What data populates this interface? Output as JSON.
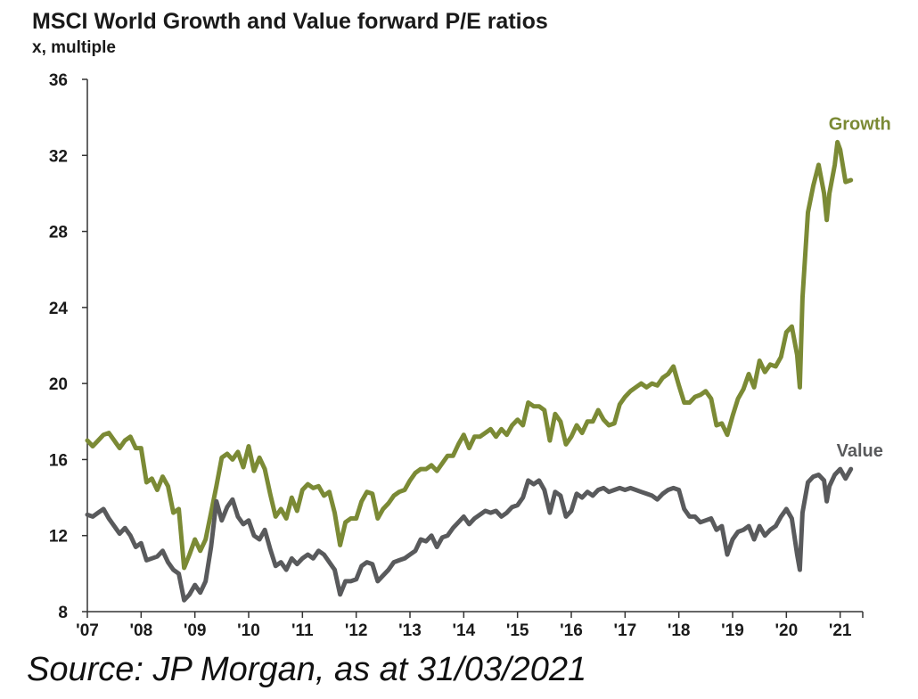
{
  "chart_data": {
    "type": "line",
    "title": "MSCI World Growth and Value forward P/E ratios",
    "subtitle": "x, multiple",
    "xlabel": "",
    "ylabel": "x, multiple",
    "ylim": [
      8,
      36
    ],
    "xlim": [
      2007.0,
      2021.42
    ],
    "yticks": [
      "36",
      "32",
      "28",
      "24",
      "20",
      "16",
      "12",
      "8"
    ],
    "yticks_values": [
      36,
      32,
      28,
      24,
      20,
      16,
      12,
      8
    ],
    "xticks": [
      "'07",
      "'08",
      "'09",
      "'10",
      "'11",
      "'12",
      "'13",
      "'14",
      "'15",
      "'16",
      "'17",
      "'18",
      "'19",
      "'20",
      "'21"
    ],
    "xticks_values": [
      2007,
      2008,
      2009,
      2010,
      2011,
      2012,
      2013,
      2014,
      2015,
      2016,
      2017,
      2018,
      2019,
      2020,
      2021
    ],
    "series": [
      {
        "name": "Growth",
        "label": "Growth",
        "color": "#7b8a35",
        "points": [
          [
            2007.0,
            17.0
          ],
          [
            2007.1,
            16.7
          ],
          [
            2007.2,
            17.0
          ],
          [
            2007.3,
            17.3
          ],
          [
            2007.4,
            17.4
          ],
          [
            2007.5,
            17.0
          ],
          [
            2007.6,
            16.6
          ],
          [
            2007.7,
            17.0
          ],
          [
            2007.8,
            17.2
          ],
          [
            2007.9,
            16.6
          ],
          [
            2008.0,
            16.6
          ],
          [
            2008.1,
            14.8
          ],
          [
            2008.2,
            15.0
          ],
          [
            2008.3,
            14.4
          ],
          [
            2008.4,
            15.1
          ],
          [
            2008.5,
            14.6
          ],
          [
            2008.6,
            13.2
          ],
          [
            2008.7,
            13.4
          ],
          [
            2008.8,
            10.3
          ],
          [
            2008.9,
            11.0
          ],
          [
            2009.0,
            11.8
          ],
          [
            2009.1,
            11.2
          ],
          [
            2009.2,
            11.8
          ],
          [
            2009.3,
            13.2
          ],
          [
            2009.4,
            14.6
          ],
          [
            2009.5,
            16.1
          ],
          [
            2009.6,
            16.3
          ],
          [
            2009.7,
            16.0
          ],
          [
            2009.8,
            16.4
          ],
          [
            2009.9,
            15.6
          ],
          [
            2010.0,
            16.7
          ],
          [
            2010.1,
            15.4
          ],
          [
            2010.2,
            16.1
          ],
          [
            2010.3,
            15.5
          ],
          [
            2010.4,
            14.2
          ],
          [
            2010.5,
            13.0
          ],
          [
            2010.6,
            13.4
          ],
          [
            2010.7,
            12.9
          ],
          [
            2010.8,
            14.0
          ],
          [
            2010.9,
            13.3
          ],
          [
            2011.0,
            14.4
          ],
          [
            2011.1,
            14.7
          ],
          [
            2011.2,
            14.5
          ],
          [
            2011.3,
            14.6
          ],
          [
            2011.4,
            14.1
          ],
          [
            2011.5,
            14.3
          ],
          [
            2011.6,
            13.2
          ],
          [
            2011.7,
            11.5
          ],
          [
            2011.8,
            12.7
          ],
          [
            2011.9,
            12.9
          ],
          [
            2012.0,
            12.9
          ],
          [
            2012.1,
            13.8
          ],
          [
            2012.2,
            14.3
          ],
          [
            2012.3,
            14.2
          ],
          [
            2012.4,
            12.9
          ],
          [
            2012.5,
            13.4
          ],
          [
            2012.6,
            13.7
          ],
          [
            2012.7,
            14.1
          ],
          [
            2012.8,
            14.3
          ],
          [
            2012.9,
            14.4
          ],
          [
            2013.0,
            14.9
          ],
          [
            2013.1,
            15.3
          ],
          [
            2013.2,
            15.5
          ],
          [
            2013.3,
            15.5
          ],
          [
            2013.4,
            15.7
          ],
          [
            2013.5,
            15.4
          ],
          [
            2013.6,
            15.8
          ],
          [
            2013.7,
            16.2
          ],
          [
            2013.8,
            16.2
          ],
          [
            2013.9,
            16.8
          ],
          [
            2014.0,
            17.3
          ],
          [
            2014.1,
            16.6
          ],
          [
            2014.2,
            17.2
          ],
          [
            2014.3,
            17.2
          ],
          [
            2014.4,
            17.4
          ],
          [
            2014.5,
            17.6
          ],
          [
            2014.6,
            17.2
          ],
          [
            2014.7,
            17.6
          ],
          [
            2014.8,
            17.3
          ],
          [
            2014.9,
            17.8
          ],
          [
            2015.0,
            18.1
          ],
          [
            2015.1,
            17.8
          ],
          [
            2015.2,
            19.0
          ],
          [
            2015.3,
            18.8
          ],
          [
            2015.4,
            18.8
          ],
          [
            2015.5,
            18.6
          ],
          [
            2015.6,
            17.0
          ],
          [
            2015.7,
            18.4
          ],
          [
            2015.8,
            18.0
          ],
          [
            2015.9,
            16.8
          ],
          [
            2016.0,
            17.2
          ],
          [
            2016.1,
            17.8
          ],
          [
            2016.2,
            17.4
          ],
          [
            2016.3,
            18.0
          ],
          [
            2016.4,
            18.0
          ],
          [
            2016.5,
            18.6
          ],
          [
            2016.6,
            18.1
          ],
          [
            2016.7,
            17.8
          ],
          [
            2016.8,
            17.9
          ],
          [
            2016.9,
            18.9
          ],
          [
            2017.0,
            19.3
          ],
          [
            2017.1,
            19.6
          ],
          [
            2017.2,
            19.8
          ],
          [
            2017.3,
            20.0
          ],
          [
            2017.4,
            19.8
          ],
          [
            2017.5,
            20.0
          ],
          [
            2017.6,
            19.9
          ],
          [
            2017.7,
            20.3
          ],
          [
            2017.8,
            20.5
          ],
          [
            2017.9,
            20.9
          ],
          [
            2018.0,
            19.9
          ],
          [
            2018.1,
            19.0
          ],
          [
            2018.2,
            19.0
          ],
          [
            2018.3,
            19.3
          ],
          [
            2018.4,
            19.4
          ],
          [
            2018.5,
            19.6
          ],
          [
            2018.6,
            19.2
          ],
          [
            2018.7,
            17.8
          ],
          [
            2018.8,
            17.9
          ],
          [
            2018.9,
            17.3
          ],
          [
            2019.0,
            18.3
          ],
          [
            2019.1,
            19.2
          ],
          [
            2019.2,
            19.7
          ],
          [
            2019.3,
            20.5
          ],
          [
            2019.4,
            19.8
          ],
          [
            2019.5,
            21.2
          ],
          [
            2019.6,
            20.6
          ],
          [
            2019.7,
            21.0
          ],
          [
            2019.8,
            20.9
          ],
          [
            2019.9,
            21.4
          ],
          [
            2020.0,
            22.7
          ],
          [
            2020.1,
            23.0
          ],
          [
            2020.2,
            21.5
          ],
          [
            2020.25,
            19.8
          ],
          [
            2020.3,
            24.5
          ],
          [
            2020.4,
            29.0
          ],
          [
            2020.5,
            30.4
          ],
          [
            2020.6,
            31.5
          ],
          [
            2020.7,
            30.0
          ],
          [
            2020.75,
            28.6
          ],
          [
            2020.8,
            30.0
          ],
          [
            2020.9,
            31.5
          ],
          [
            2020.95,
            32.7
          ],
          [
            2021.0,
            32.3
          ],
          [
            2021.1,
            30.6
          ],
          [
            2021.2,
            30.7
          ]
        ]
      },
      {
        "name": "Value",
        "label": "Value",
        "color": "#595a5c",
        "points": [
          [
            2007.0,
            13.1
          ],
          [
            2007.1,
            13.0
          ],
          [
            2007.2,
            13.2
          ],
          [
            2007.3,
            13.4
          ],
          [
            2007.4,
            12.9
          ],
          [
            2007.5,
            12.5
          ],
          [
            2007.6,
            12.1
          ],
          [
            2007.7,
            12.4
          ],
          [
            2007.8,
            12.0
          ],
          [
            2007.9,
            11.4
          ],
          [
            2008.0,
            11.6
          ],
          [
            2008.1,
            10.7
          ],
          [
            2008.2,
            10.8
          ],
          [
            2008.3,
            10.9
          ],
          [
            2008.4,
            11.2
          ],
          [
            2008.5,
            10.6
          ],
          [
            2008.6,
            10.2
          ],
          [
            2008.7,
            10.0
          ],
          [
            2008.8,
            8.6
          ],
          [
            2008.9,
            8.9
          ],
          [
            2009.0,
            9.4
          ],
          [
            2009.1,
            9.0
          ],
          [
            2009.2,
            9.6
          ],
          [
            2009.3,
            11.4
          ],
          [
            2009.4,
            13.8
          ],
          [
            2009.5,
            12.8
          ],
          [
            2009.6,
            13.5
          ],
          [
            2009.7,
            13.9
          ],
          [
            2009.8,
            13.0
          ],
          [
            2009.9,
            12.6
          ],
          [
            2010.0,
            12.8
          ],
          [
            2010.1,
            12.0
          ],
          [
            2010.2,
            11.8
          ],
          [
            2010.3,
            12.3
          ],
          [
            2010.4,
            11.3
          ],
          [
            2010.5,
            10.4
          ],
          [
            2010.6,
            10.6
          ],
          [
            2010.7,
            10.2
          ],
          [
            2010.8,
            10.8
          ],
          [
            2010.9,
            10.5
          ],
          [
            2011.0,
            10.8
          ],
          [
            2011.1,
            11.0
          ],
          [
            2011.2,
            10.8
          ],
          [
            2011.3,
            11.2
          ],
          [
            2011.4,
            11.0
          ],
          [
            2011.5,
            10.6
          ],
          [
            2011.6,
            10.2
          ],
          [
            2011.7,
            8.9
          ],
          [
            2011.8,
            9.6
          ],
          [
            2011.9,
            9.6
          ],
          [
            2012.0,
            9.7
          ],
          [
            2012.1,
            10.4
          ],
          [
            2012.2,
            10.6
          ],
          [
            2012.3,
            10.5
          ],
          [
            2012.4,
            9.6
          ],
          [
            2012.5,
            9.9
          ],
          [
            2012.6,
            10.2
          ],
          [
            2012.7,
            10.6
          ],
          [
            2012.8,
            10.7
          ],
          [
            2012.9,
            10.8
          ],
          [
            2013.0,
            11.0
          ],
          [
            2013.1,
            11.2
          ],
          [
            2013.2,
            11.8
          ],
          [
            2013.3,
            11.7
          ],
          [
            2013.4,
            12.0
          ],
          [
            2013.5,
            11.4
          ],
          [
            2013.6,
            11.9
          ],
          [
            2013.7,
            12.0
          ],
          [
            2013.8,
            12.4
          ],
          [
            2013.9,
            12.7
          ],
          [
            2014.0,
            13.0
          ],
          [
            2014.1,
            12.6
          ],
          [
            2014.2,
            12.9
          ],
          [
            2014.3,
            13.1
          ],
          [
            2014.4,
            13.3
          ],
          [
            2014.5,
            13.2
          ],
          [
            2014.6,
            13.3
          ],
          [
            2014.7,
            13.0
          ],
          [
            2014.8,
            13.2
          ],
          [
            2014.9,
            13.5
          ],
          [
            2015.0,
            13.6
          ],
          [
            2015.1,
            14.0
          ],
          [
            2015.2,
            14.9
          ],
          [
            2015.3,
            14.7
          ],
          [
            2015.4,
            14.9
          ],
          [
            2015.5,
            14.4
          ],
          [
            2015.6,
            13.2
          ],
          [
            2015.7,
            14.3
          ],
          [
            2015.8,
            14.1
          ],
          [
            2015.9,
            13.0
          ],
          [
            2016.0,
            13.3
          ],
          [
            2016.1,
            14.2
          ],
          [
            2016.2,
            14.0
          ],
          [
            2016.3,
            14.3
          ],
          [
            2016.4,
            14.1
          ],
          [
            2016.5,
            14.4
          ],
          [
            2016.6,
            14.5
          ],
          [
            2016.7,
            14.3
          ],
          [
            2016.8,
            14.4
          ],
          [
            2016.9,
            14.5
          ],
          [
            2017.0,
            14.4
          ],
          [
            2017.1,
            14.5
          ],
          [
            2017.2,
            14.4
          ],
          [
            2017.3,
            14.3
          ],
          [
            2017.4,
            14.2
          ],
          [
            2017.5,
            14.1
          ],
          [
            2017.6,
            13.9
          ],
          [
            2017.7,
            14.2
          ],
          [
            2017.8,
            14.4
          ],
          [
            2017.9,
            14.5
          ],
          [
            2018.0,
            14.4
          ],
          [
            2018.1,
            13.4
          ],
          [
            2018.2,
            13.0
          ],
          [
            2018.3,
            13.0
          ],
          [
            2018.4,
            12.7
          ],
          [
            2018.5,
            12.8
          ],
          [
            2018.6,
            12.9
          ],
          [
            2018.7,
            12.3
          ],
          [
            2018.8,
            12.5
          ],
          [
            2018.9,
            11.0
          ],
          [
            2019.0,
            11.8
          ],
          [
            2019.1,
            12.2
          ],
          [
            2019.2,
            12.3
          ],
          [
            2019.3,
            12.5
          ],
          [
            2019.4,
            11.8
          ],
          [
            2019.5,
            12.5
          ],
          [
            2019.6,
            12.0
          ],
          [
            2019.7,
            12.3
          ],
          [
            2019.8,
            12.5
          ],
          [
            2019.9,
            13.0
          ],
          [
            2020.0,
            13.4
          ],
          [
            2020.1,
            12.9
          ],
          [
            2020.2,
            11.0
          ],
          [
            2020.25,
            10.2
          ],
          [
            2020.3,
            13.2
          ],
          [
            2020.4,
            14.8
          ],
          [
            2020.5,
            15.1
          ],
          [
            2020.6,
            15.2
          ],
          [
            2020.7,
            14.9
          ],
          [
            2020.75,
            13.8
          ],
          [
            2020.8,
            14.6
          ],
          [
            2020.9,
            15.2
          ],
          [
            2021.0,
            15.5
          ],
          [
            2021.1,
            15.0
          ],
          [
            2021.2,
            15.5
          ]
        ]
      }
    ]
  },
  "source": "Source: JP Morgan, as at 31/03/2021"
}
